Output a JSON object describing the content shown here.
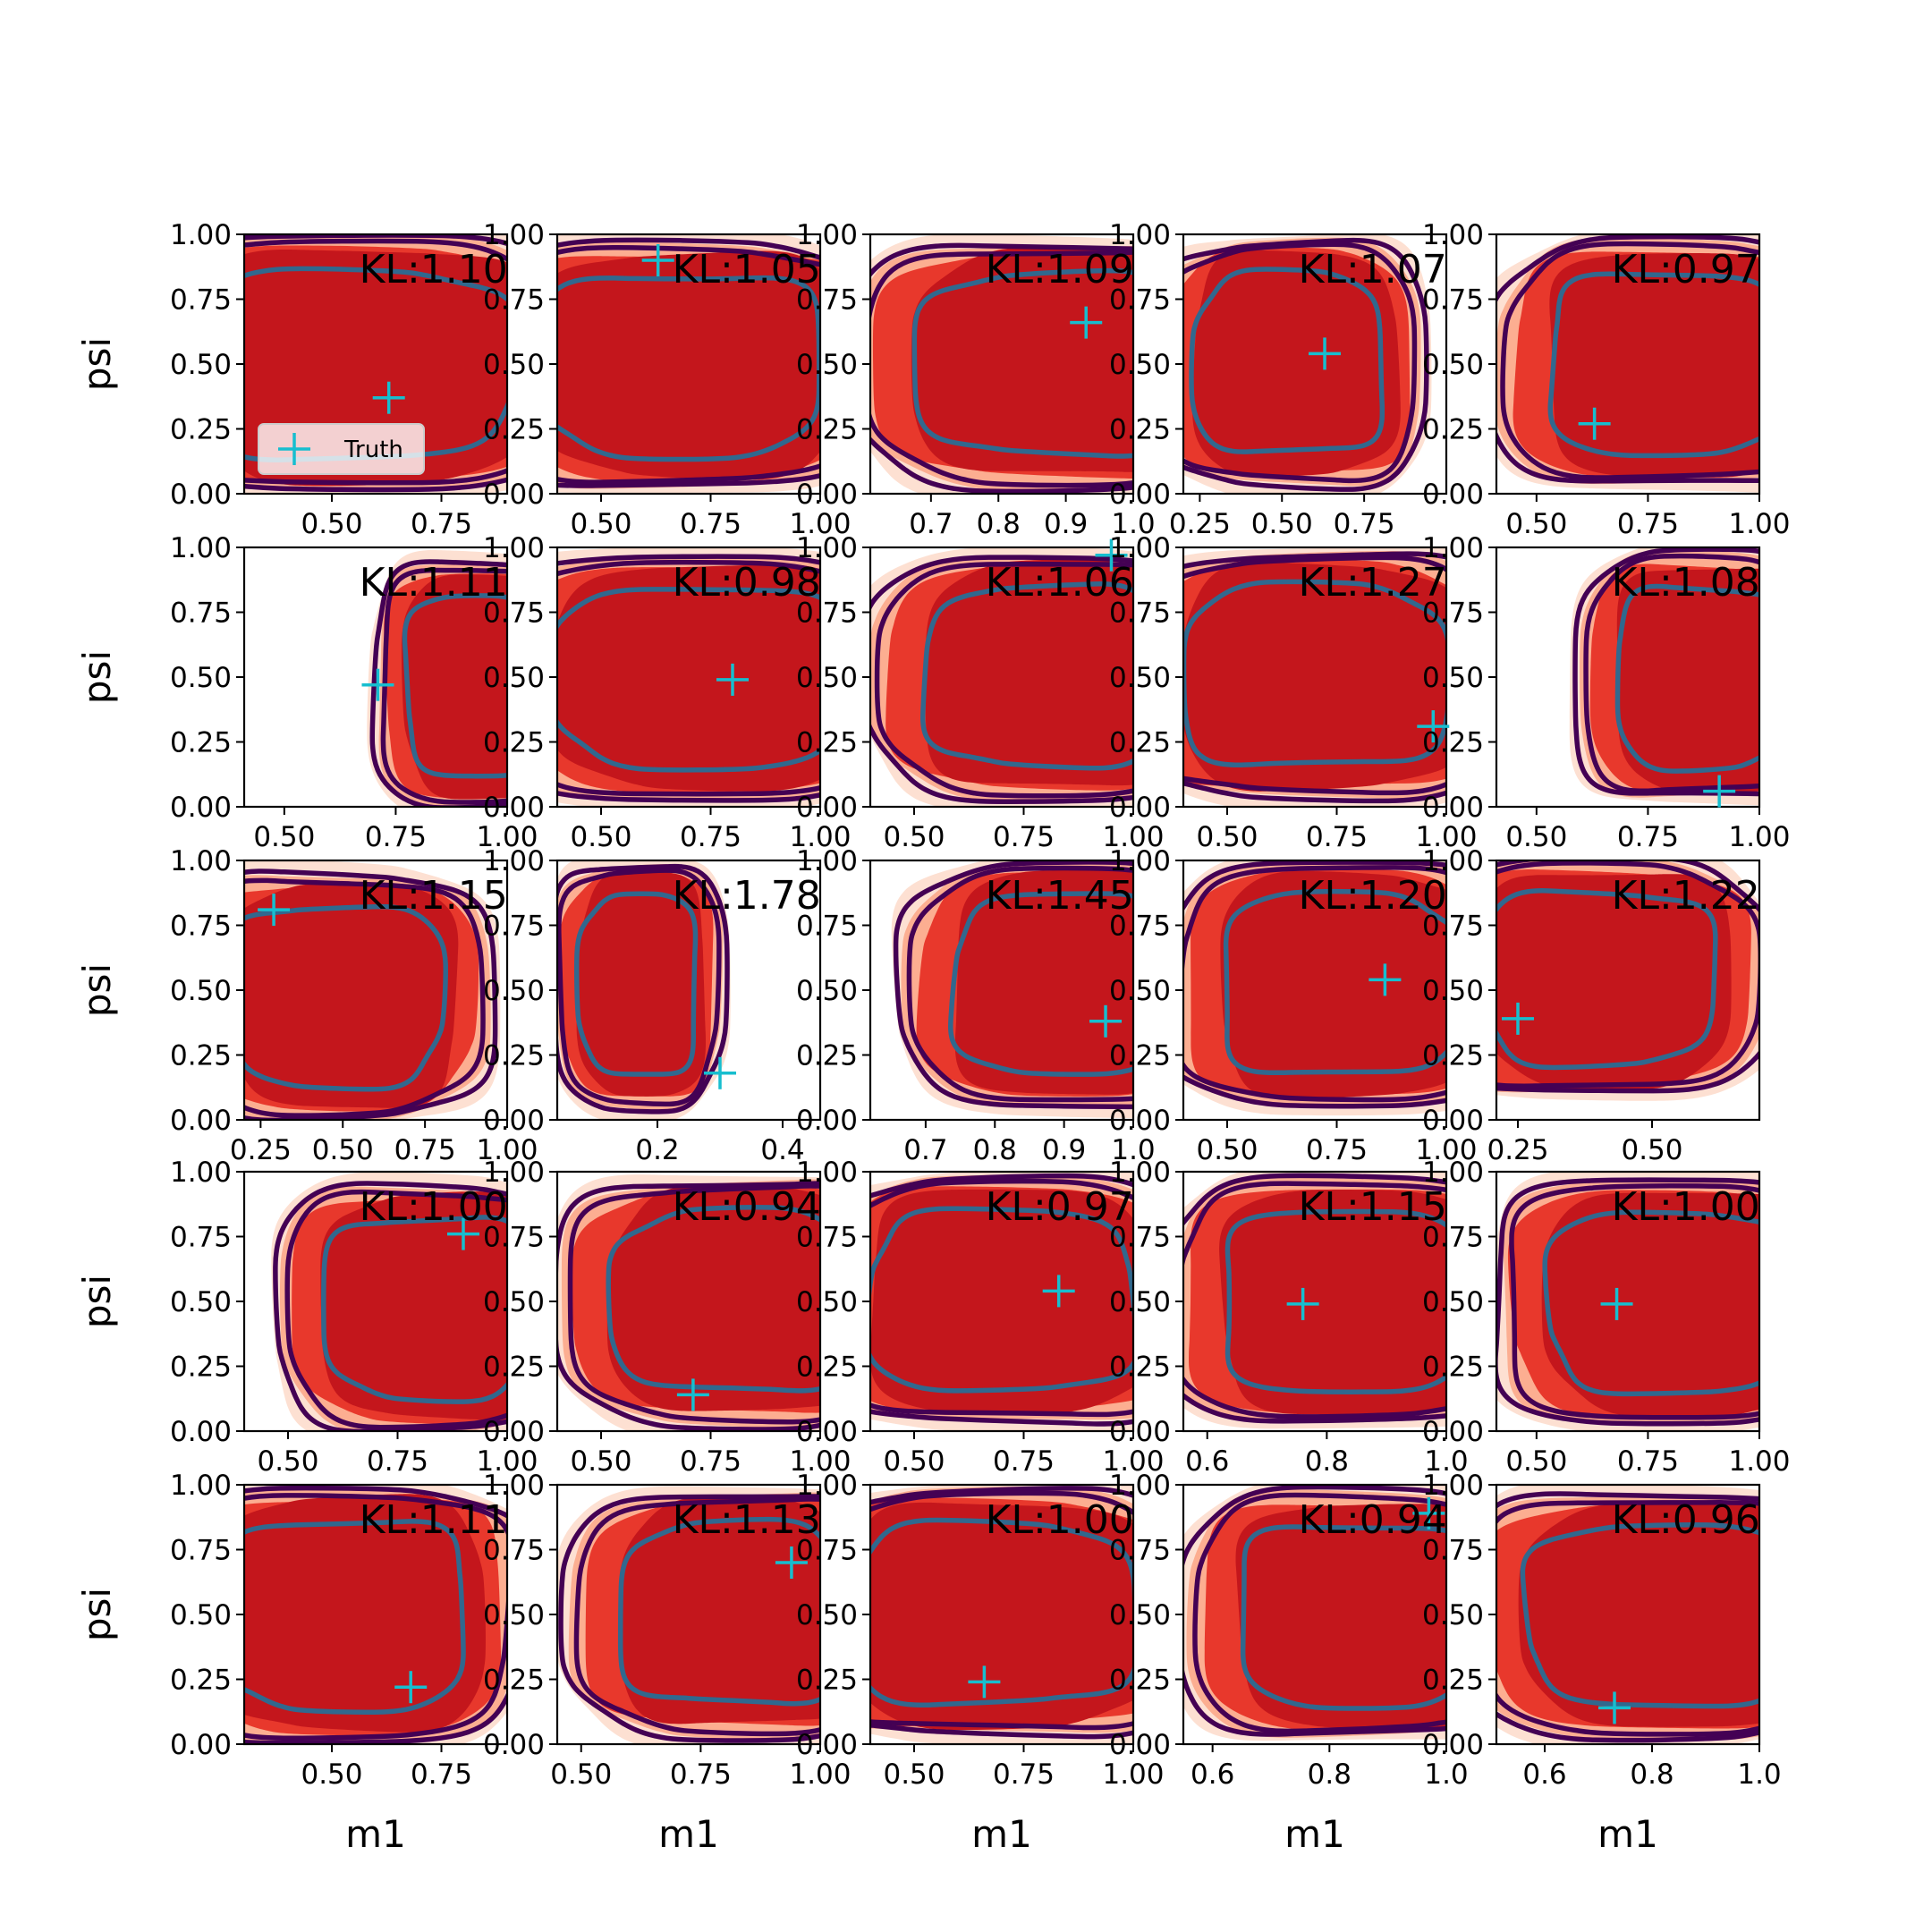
{
  "chart_data": {
    "type": "contour-grid",
    "rows": 5,
    "cols": 5,
    "xlabel": "m1",
    "ylabel": "psi",
    "ylim": [
      0,
      1
    ],
    "y_ticks": [
      "0.00",
      "0.25",
      "0.50",
      "0.75",
      "1.00"
    ],
    "legend": {
      "label": "Truth",
      "panel": 0,
      "placement": "lower left"
    },
    "colors": {
      "fill_levels": [
        "#fde0d2",
        "#fcae91",
        "#e8382c",
        "#c4161c"
      ],
      "outer_contour": "#440154",
      "inner_contour": "#31688e",
      "truth_marker": "#17becf"
    },
    "panels": [
      {
        "kl": "KL:1.10",
        "xlim": [
          0.3,
          0.9
        ],
        "xticks": [
          [
            0.5,
            "0.50"
          ],
          [
            0.75,
            "0.75"
          ]
        ],
        "truth": [
          0.63,
          0.37
        ],
        "density": {
          "cx": 0.55,
          "cy": 0.5,
          "sx": 0.5,
          "sy": 0.49
        }
      },
      {
        "kl": "KL:1.05",
        "xlim": [
          0.4,
          1.0
        ],
        "xticks": [
          [
            0.5,
            "0.50"
          ],
          [
            0.75,
            "0.75"
          ],
          [
            1.0,
            "1.00"
          ]
        ],
        "truth": [
          0.63,
          0.9
        ],
        "density": {
          "cx": 0.68,
          "cy": 0.5,
          "sx": 0.45,
          "sy": 0.47
        }
      },
      {
        "kl": "KL:1.09",
        "xlim": [
          0.61,
          1.0
        ],
        "xticks": [
          [
            0.7,
            "0.7"
          ],
          [
            0.8,
            "0.8"
          ],
          [
            0.9,
            "0.9"
          ],
          [
            1.0,
            "1.0"
          ]
        ],
        "truth": [
          0.93,
          0.66
        ],
        "density": {
          "cx": 0.88,
          "cy": 0.5,
          "sx": 0.28,
          "sy": 0.47
        }
      },
      {
        "kl": "KL:1.07",
        "xlim": [
          0.2,
          1.0
        ],
        "xticks": [
          [
            0.25,
            "0.25"
          ],
          [
            0.5,
            "0.50"
          ],
          [
            0.75,
            "0.75"
          ]
        ],
        "truth": [
          0.63,
          0.54
        ],
        "density": {
          "cx": 0.52,
          "cy": 0.5,
          "sx": 0.4,
          "sy": 0.47
        }
      },
      {
        "kl": "KL:0.97",
        "xlim": [
          0.41,
          1.0
        ],
        "xticks": [
          [
            0.5,
            "0.50"
          ],
          [
            0.75,
            "0.75"
          ],
          [
            1.0,
            "1.00"
          ]
        ],
        "truth": [
          0.63,
          0.27
        ],
        "density": {
          "cx": 0.8,
          "cy": 0.5,
          "sx": 0.38,
          "sy": 0.47
        }
      },
      {
        "kl": "KL:1.11",
        "xlim": [
          0.41,
          1.0
        ],
        "xticks": [
          [
            0.5,
            "0.50"
          ],
          [
            0.75,
            "0.75"
          ],
          [
            1.0,
            "1.00"
          ]
        ],
        "truth": [
          0.71,
          0.47
        ],
        "density": {
          "cx": 0.93,
          "cy": 0.47,
          "sx": 0.22,
          "sy": 0.47
        }
      },
      {
        "kl": "KL:0.98",
        "xlim": [
          0.4,
          1.0
        ],
        "xticks": [
          [
            0.5,
            "0.50"
          ],
          [
            0.75,
            "0.75"
          ],
          [
            1.0,
            "1.00"
          ]
        ],
        "truth": [
          0.8,
          0.49
        ],
        "density": {
          "cx": 0.72,
          "cy": 0.5,
          "sx": 0.45,
          "sy": 0.47
        }
      },
      {
        "kl": "KL:1.06",
        "xlim": [
          0.4,
          1.0
        ],
        "xticks": [
          [
            0.5,
            "0.50"
          ],
          [
            0.75,
            "0.75"
          ],
          [
            1.0,
            "1.00"
          ]
        ],
        "truth": [
          0.95,
          0.97
        ],
        "density": {
          "cx": 0.8,
          "cy": 0.5,
          "sx": 0.38,
          "sy": 0.47
        }
      },
      {
        "kl": "KL:1.27",
        "xlim": [
          0.4,
          1.0
        ],
        "xticks": [
          [
            0.5,
            "0.50"
          ],
          [
            0.75,
            "0.75"
          ],
          [
            1.0,
            "1.00"
          ]
        ],
        "truth": [
          0.97,
          0.31
        ],
        "density": {
          "cx": 0.7,
          "cy": 0.5,
          "sx": 0.42,
          "sy": 0.47
        }
      },
      {
        "kl": "KL:1.08",
        "xlim": [
          0.41,
          1.0
        ],
        "xticks": [
          [
            0.5,
            "0.50"
          ],
          [
            0.75,
            "0.75"
          ],
          [
            1.0,
            "1.00"
          ]
        ],
        "truth": [
          0.91,
          0.06
        ],
        "density": {
          "cx": 0.88,
          "cy": 0.5,
          "sx": 0.28,
          "sy": 0.47
        }
      },
      {
        "kl": "KL:1.15",
        "xlim": [
          0.2,
          1.0
        ],
        "xticks": [
          [
            0.25,
            "0.25"
          ],
          [
            0.5,
            "0.50"
          ],
          [
            0.75,
            "0.75"
          ],
          [
            1.0,
            "1.00"
          ]
        ],
        "truth": [
          0.29,
          0.81
        ],
        "density": {
          "cx": 0.48,
          "cy": 0.48,
          "sx": 0.45,
          "sy": 0.47
        }
      },
      {
        "kl": "KL:1.78",
        "xlim": [
          0.04,
          0.46
        ],
        "xticks": [
          [
            0.2,
            "0.2"
          ],
          [
            0.4,
            "0.4"
          ]
        ],
        "truth": [
          0.3,
          0.18
        ],
        "density": {
          "cx": 0.17,
          "cy": 0.52,
          "sx": 0.13,
          "sy": 0.47
        }
      },
      {
        "kl": "KL:1.45",
        "xlim": [
          0.62,
          1.0
        ],
        "xticks": [
          [
            0.7,
            "0.7"
          ],
          [
            0.8,
            "0.8"
          ],
          [
            0.9,
            "0.9"
          ],
          [
            1.0,
            "1.0"
          ]
        ],
        "truth": [
          0.96,
          0.38
        ],
        "density": {
          "cx": 0.9,
          "cy": 0.52,
          "sx": 0.22,
          "sy": 0.47
        }
      },
      {
        "kl": "KL:1.20",
        "xlim": [
          0.4,
          1.0
        ],
        "xticks": [
          [
            0.5,
            "0.50"
          ],
          [
            0.75,
            "0.75"
          ],
          [
            1.0,
            "1.00"
          ]
        ],
        "truth": [
          0.86,
          0.54
        ],
        "density": {
          "cx": 0.76,
          "cy": 0.52,
          "sx": 0.38,
          "sy": 0.47
        }
      },
      {
        "kl": "KL:1.22",
        "xlim": [
          0.21,
          0.7
        ],
        "xticks": [
          [
            0.25,
            "0.25"
          ],
          [
            0.5,
            "0.50"
          ]
        ],
        "truth": [
          0.25,
          0.39
        ],
        "density": {
          "cx": 0.4,
          "cy": 0.55,
          "sx": 0.3,
          "sy": 0.45
        }
      },
      {
        "kl": "KL:1.00",
        "xlim": [
          0.4,
          1.0
        ],
        "xticks": [
          [
            0.5,
            "0.50"
          ],
          [
            0.75,
            "0.75"
          ],
          [
            1.0,
            "1.00"
          ]
        ],
        "truth": [
          0.9,
          0.76
        ],
        "density": {
          "cx": 0.82,
          "cy": 0.48,
          "sx": 0.33,
          "sy": 0.47
        }
      },
      {
        "kl": "KL:0.94",
        "xlim": [
          0.4,
          1.0
        ],
        "xticks": [
          [
            0.5,
            "0.50"
          ],
          [
            0.75,
            "0.75"
          ],
          [
            1.0,
            "1.00"
          ]
        ],
        "truth": [
          0.71,
          0.14
        ],
        "density": {
          "cx": 0.8,
          "cy": 0.5,
          "sx": 0.38,
          "sy": 0.47
        }
      },
      {
        "kl": "KL:0.97",
        "xlim": [
          0.4,
          1.0
        ],
        "xticks": [
          [
            0.5,
            "0.50"
          ],
          [
            0.75,
            "0.75"
          ],
          [
            1.0,
            "1.00"
          ]
        ],
        "truth": [
          0.83,
          0.54
        ],
        "density": {
          "cx": 0.7,
          "cy": 0.5,
          "sx": 0.42,
          "sy": 0.47
        }
      },
      {
        "kl": "KL:1.15",
        "xlim": [
          0.56,
          1.0
        ],
        "xticks": [
          [
            0.6,
            "0.6"
          ],
          [
            0.8,
            "0.8"
          ],
          [
            1.0,
            "1.0"
          ]
        ],
        "truth": [
          0.76,
          0.49
        ],
        "density": {
          "cx": 0.84,
          "cy": 0.5,
          "sx": 0.3,
          "sy": 0.47
        }
      },
      {
        "kl": "KL:1.00",
        "xlim": [
          0.41,
          1.0
        ],
        "xticks": [
          [
            0.5,
            "0.50"
          ],
          [
            0.75,
            "0.75"
          ],
          [
            1.0,
            "1.00"
          ]
        ],
        "truth": [
          0.68,
          0.49
        ],
        "density": {
          "cx": 0.8,
          "cy": 0.5,
          "sx": 0.38,
          "sy": 0.47
        }
      },
      {
        "kl": "KL:1.11",
        "xlim": [
          0.3,
          0.9
        ],
        "xticks": [
          [
            0.5,
            "0.50"
          ],
          [
            0.75,
            "0.75"
          ]
        ],
        "truth": [
          0.68,
          0.22
        ],
        "density": {
          "cx": 0.52,
          "cy": 0.5,
          "sx": 0.4,
          "sy": 0.49
        }
      },
      {
        "kl": "KL:1.13",
        "xlim": [
          0.45,
          1.0
        ],
        "xticks": [
          [
            0.5,
            "0.50"
          ],
          [
            0.75,
            "0.75"
          ],
          [
            1.0,
            "1.00"
          ]
        ],
        "truth": [
          0.94,
          0.7
        ],
        "density": {
          "cx": 0.82,
          "cy": 0.5,
          "sx": 0.33,
          "sy": 0.47
        }
      },
      {
        "kl": "KL:1.00",
        "xlim": [
          0.4,
          1.0
        ],
        "xticks": [
          [
            0.5,
            "0.50"
          ],
          [
            0.75,
            "0.75"
          ],
          [
            1.0,
            "1.00"
          ]
        ],
        "truth": [
          0.66,
          0.24
        ],
        "density": {
          "cx": 0.68,
          "cy": 0.5,
          "sx": 0.45,
          "sy": 0.47
        }
      },
      {
        "kl": "KL:0.94",
        "xlim": [
          0.55,
          1.0
        ],
        "xticks": [
          [
            0.6,
            "0.6"
          ],
          [
            0.8,
            "0.8"
          ],
          [
            1.0,
            "1.0"
          ]
        ],
        "truth": [
          0.97,
          0.89
        ],
        "density": {
          "cx": 0.86,
          "cy": 0.5,
          "sx": 0.3,
          "sy": 0.47
        }
      },
      {
        "kl": "KL:0.96",
        "xlim": [
          0.51,
          1.0
        ],
        "xticks": [
          [
            0.6,
            "0.6"
          ],
          [
            0.8,
            "0.8"
          ],
          [
            1.0,
            "1.0"
          ]
        ],
        "truth": [
          0.73,
          0.14
        ],
        "density": {
          "cx": 0.82,
          "cy": 0.5,
          "sx": 0.35,
          "sy": 0.47
        }
      }
    ]
  }
}
